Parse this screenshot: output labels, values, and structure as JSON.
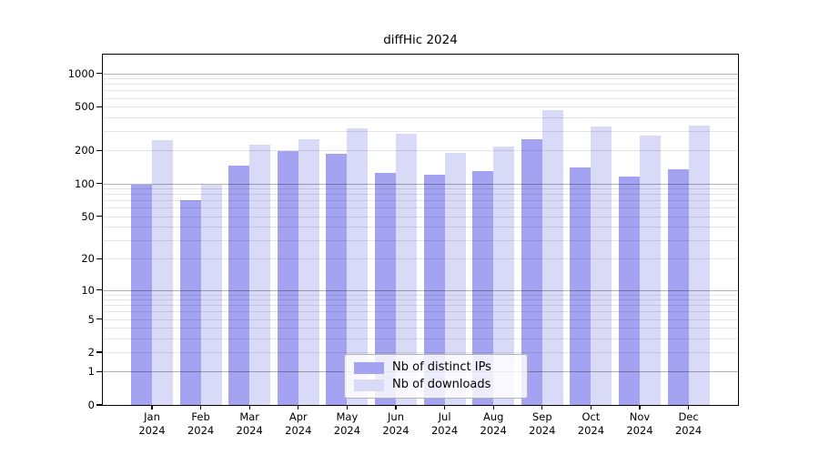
{
  "title": "diffHic 2024",
  "chart_data": {
    "type": "bar",
    "title": "diffHic 2024",
    "categories": [
      "Jan 2024",
      "Feb 2024",
      "Mar 2024",
      "Apr 2024",
      "May 2024",
      "Jun 2024",
      "Jul 2024",
      "Aug 2024",
      "Sep 2024",
      "Oct 2024",
      "Nov 2024",
      "Dec 2024"
    ],
    "category_months": [
      "Jan",
      "Feb",
      "Mar",
      "Apr",
      "May",
      "Jun",
      "Jul",
      "Aug",
      "Sep",
      "Oct",
      "Nov",
      "Dec"
    ],
    "category_year": "2024",
    "series": [
      {
        "name": "Nb of distinct IPs",
        "color": "#a3a3f1",
        "values": [
          97,
          70,
          147,
          196,
          186,
          124,
          121,
          131,
          253,
          140,
          116,
          135
        ]
      },
      {
        "name": "Nb of downloads",
        "color": "#d9d9f8",
        "values": [
          250,
          98,
          227,
          255,
          318,
          285,
          190,
          219,
          465,
          330,
          275,
          335
        ]
      }
    ],
    "y_ticks": [
      0,
      1,
      2,
      5,
      10,
      20,
      50,
      100,
      200,
      500,
      1000
    ],
    "y_scale": "log10(value+1)",
    "ylim": [
      0,
      1480
    ],
    "grid": {
      "major_lines": [
        1,
        10,
        100,
        1000
      ],
      "minor_steps": [
        2,
        3,
        4,
        5,
        6,
        7,
        8,
        9
      ],
      "minor_decades": [
        1,
        10,
        100
      ]
    },
    "legend_position": "lower center",
    "colors": {
      "axis": "#000000",
      "major_grid": "rgba(0,0,0,0.30)",
      "minor_grid": "rgba(0,0,0,0.10)"
    }
  }
}
